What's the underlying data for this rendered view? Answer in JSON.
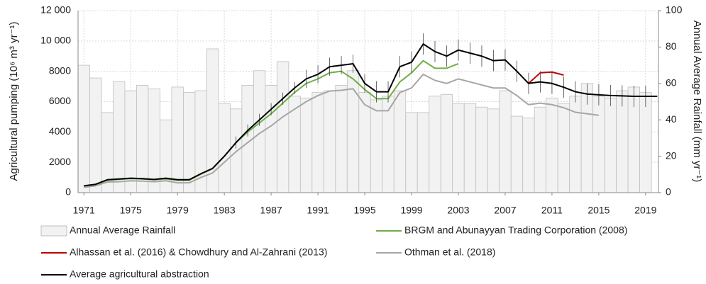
{
  "chart_data": {
    "type": "combo",
    "y_label": "Agricultural pumping (10⁶ m³ yr⁻¹)",
    "y2_label": "Annual Average Rainfall (mm yr⁻¹)",
    "x": [
      1971,
      1972,
      1973,
      1974,
      1975,
      1976,
      1977,
      1978,
      1979,
      1980,
      1981,
      1982,
      1983,
      1984,
      1985,
      1986,
      1987,
      1988,
      1989,
      1990,
      1991,
      1992,
      1993,
      1994,
      1995,
      1996,
      1997,
      1998,
      1999,
      2000,
      2001,
      2002,
      2003,
      2004,
      2005,
      2006,
      2007,
      2008,
      2009,
      2010,
      2011,
      2012,
      2013,
      2014,
      2015,
      2016,
      2017,
      2018,
      2019,
      2020
    ],
    "xlim": [
      1970.5,
      2020.1
    ],
    "xticks": [
      1971,
      1975,
      1979,
      1983,
      1987,
      1991,
      1995,
      1999,
      2003,
      2007,
      2011,
      2015,
      2019
    ],
    "ylim": [
      0,
      12000
    ],
    "yticks": [
      0,
      2000,
      4000,
      6000,
      8000,
      {
        "value": 10000,
        "label": "10 000"
      },
      {
        "value": 12000,
        "label": "12 000"
      }
    ],
    "y2lim": [
      0,
      100
    ],
    "y2ticks": [
      0,
      20,
      40,
      60,
      80,
      100
    ],
    "grid": true,
    "series": [
      {
        "name": "Annual Average Rainfall",
        "type": "bar",
        "axis": "y2",
        "color": "#f2f2f2",
        "edge_color": "#bfbfbf",
        "values": [
          70,
          63,
          44,
          61,
          56,
          59,
          57,
          40,
          58,
          55,
          56,
          79,
          49,
          46,
          59,
          67,
          59,
          72,
          53,
          52,
          55,
          56,
          59,
          67,
          55,
          51,
          53,
          56,
          44,
          44,
          53,
          54,
          49,
          49,
          47,
          46,
          56,
          42,
          41,
          47,
          52,
          49,
          53,
          60,
          53,
          52,
          56,
          58,
          55,
          null
        ]
      },
      {
        "name": "BRGM and Abunayyan Trading Corporation (2008)",
        "type": "line",
        "color": "#70ad47",
        "values": [
          400,
          520,
          820,
          870,
          930,
          900,
          850,
          900,
          820,
          820,
          1220,
          1580,
          2400,
          3300,
          4000,
          4600,
          5200,
          5900,
          6600,
          7200,
          7500,
          7900,
          8000,
          7500,
          6800,
          6200,
          6200,
          7300,
          7900,
          8700,
          8200,
          8200,
          8500,
          null,
          null,
          null,
          null,
          null,
          null,
          null,
          null,
          null,
          null,
          null,
          null,
          null,
          null,
          null,
          null,
          null
        ]
      },
      {
        "name": "Alhassan et al. (2016) & Chowdhury and Al-Zahrani (2013)",
        "type": "line",
        "color": "#c00000",
        "values": [
          null,
          null,
          null,
          null,
          null,
          null,
          null,
          null,
          null,
          null,
          null,
          null,
          null,
          null,
          null,
          null,
          null,
          null,
          null,
          null,
          null,
          null,
          null,
          null,
          null,
          null,
          null,
          null,
          null,
          null,
          null,
          null,
          null,
          null,
          null,
          null,
          null,
          null,
          7200,
          7900,
          7950,
          7750,
          null,
          null,
          null,
          null,
          null,
          null,
          null,
          null
        ]
      },
      {
        "name": "Othman et al. (2018)",
        "type": "line",
        "color": "#a6a6a6",
        "values": [
          350,
          450,
          700,
          720,
          780,
          760,
          720,
          780,
          650,
          650,
          1000,
          1300,
          2000,
          2700,
          3300,
          3900,
          4400,
          5000,
          5500,
          6000,
          6400,
          6700,
          6750,
          6850,
          5800,
          5400,
          5400,
          6600,
          6900,
          7800,
          7400,
          7200,
          7500,
          7300,
          7100,
          6900,
          6900,
          6400,
          5800,
          5900,
          5800,
          5600,
          5300,
          5200,
          5100,
          null,
          null,
          null,
          null,
          null
        ]
      },
      {
        "name": "Average agricultural abstraction",
        "type": "line",
        "color": "#000000",
        "values": [
          450,
          550,
          850,
          900,
          950,
          920,
          870,
          950,
          850,
          850,
          1250,
          1600,
          2400,
          3300,
          4100,
          4800,
          5500,
          6200,
          6900,
          7500,
          7800,
          8300,
          8400,
          8500,
          7200,
          6650,
          6650,
          8300,
          8600,
          9800,
          9300,
          9000,
          9400,
          9200,
          9000,
          8700,
          8750,
          8000,
          7200,
          7300,
          7200,
          6950,
          6650,
          6500,
          6450,
          6400,
          6380,
          6350,
          6350,
          6350
        ],
        "errors": [
          null,
          null,
          null,
          null,
          null,
          null,
          null,
          null,
          null,
          null,
          null,
          null,
          null,
          400,
          400,
          400,
          400,
          400,
          400,
          600,
          600,
          600,
          600,
          600,
          600,
          700,
          700,
          700,
          700,
          700,
          700,
          700,
          700,
          700,
          700,
          700,
          700,
          700,
          700,
          700,
          700,
          700,
          700,
          700,
          700,
          700,
          700,
          700,
          700,
          null
        ]
      }
    ]
  }
}
